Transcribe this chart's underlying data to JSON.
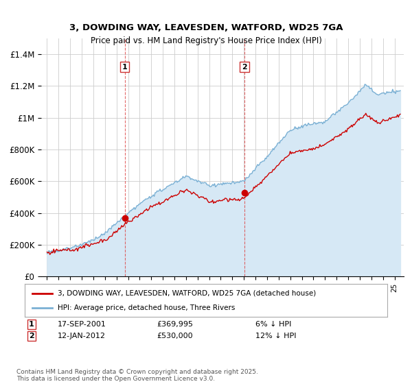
{
  "title": "3, DOWDING WAY, LEAVESDEN, WATFORD, WD25 7GA",
  "subtitle": "Price paid vs. HM Land Registry's House Price Index (HPI)",
  "hpi_color": "#7ab0d4",
  "hpi_fill_color": "#d6e8f5",
  "sale_color": "#cc0000",
  "sale1_x": 2001.72,
  "sale1_y": 369995,
  "sale2_x": 2012.04,
  "sale2_y": 530000,
  "legend_sale": "3, DOWDING WAY, LEAVESDEN, WATFORD, WD25 7GA (detached house)",
  "legend_hpi": "HPI: Average price, detached house, Three Rivers",
  "footnote": "Contains HM Land Registry data © Crown copyright and database right 2025.\nThis data is licensed under the Open Government Licence v3.0.",
  "background_color": "#ffffff",
  "grid_color": "#cccccc",
  "xmin": 1994.5,
  "xmax": 2025.8,
  "ylim": [
    0,
    1500000
  ],
  "yticks": [
    0,
    200000,
    400000,
    600000,
    800000,
    1000000,
    1200000,
    1400000
  ],
  "ytick_labels": [
    "£0",
    "£200K",
    "£400K",
    "£600K",
    "£800K",
    "£1M",
    "£1.2M",
    "£1.4M"
  ],
  "sale1_date": "17-SEP-2001",
  "sale1_price": "£369,995",
  "sale1_pct": "6% ↓ HPI",
  "sale2_date": "12-JAN-2012",
  "sale2_price": "£530,000",
  "sale2_pct": "12% ↓ HPI"
}
